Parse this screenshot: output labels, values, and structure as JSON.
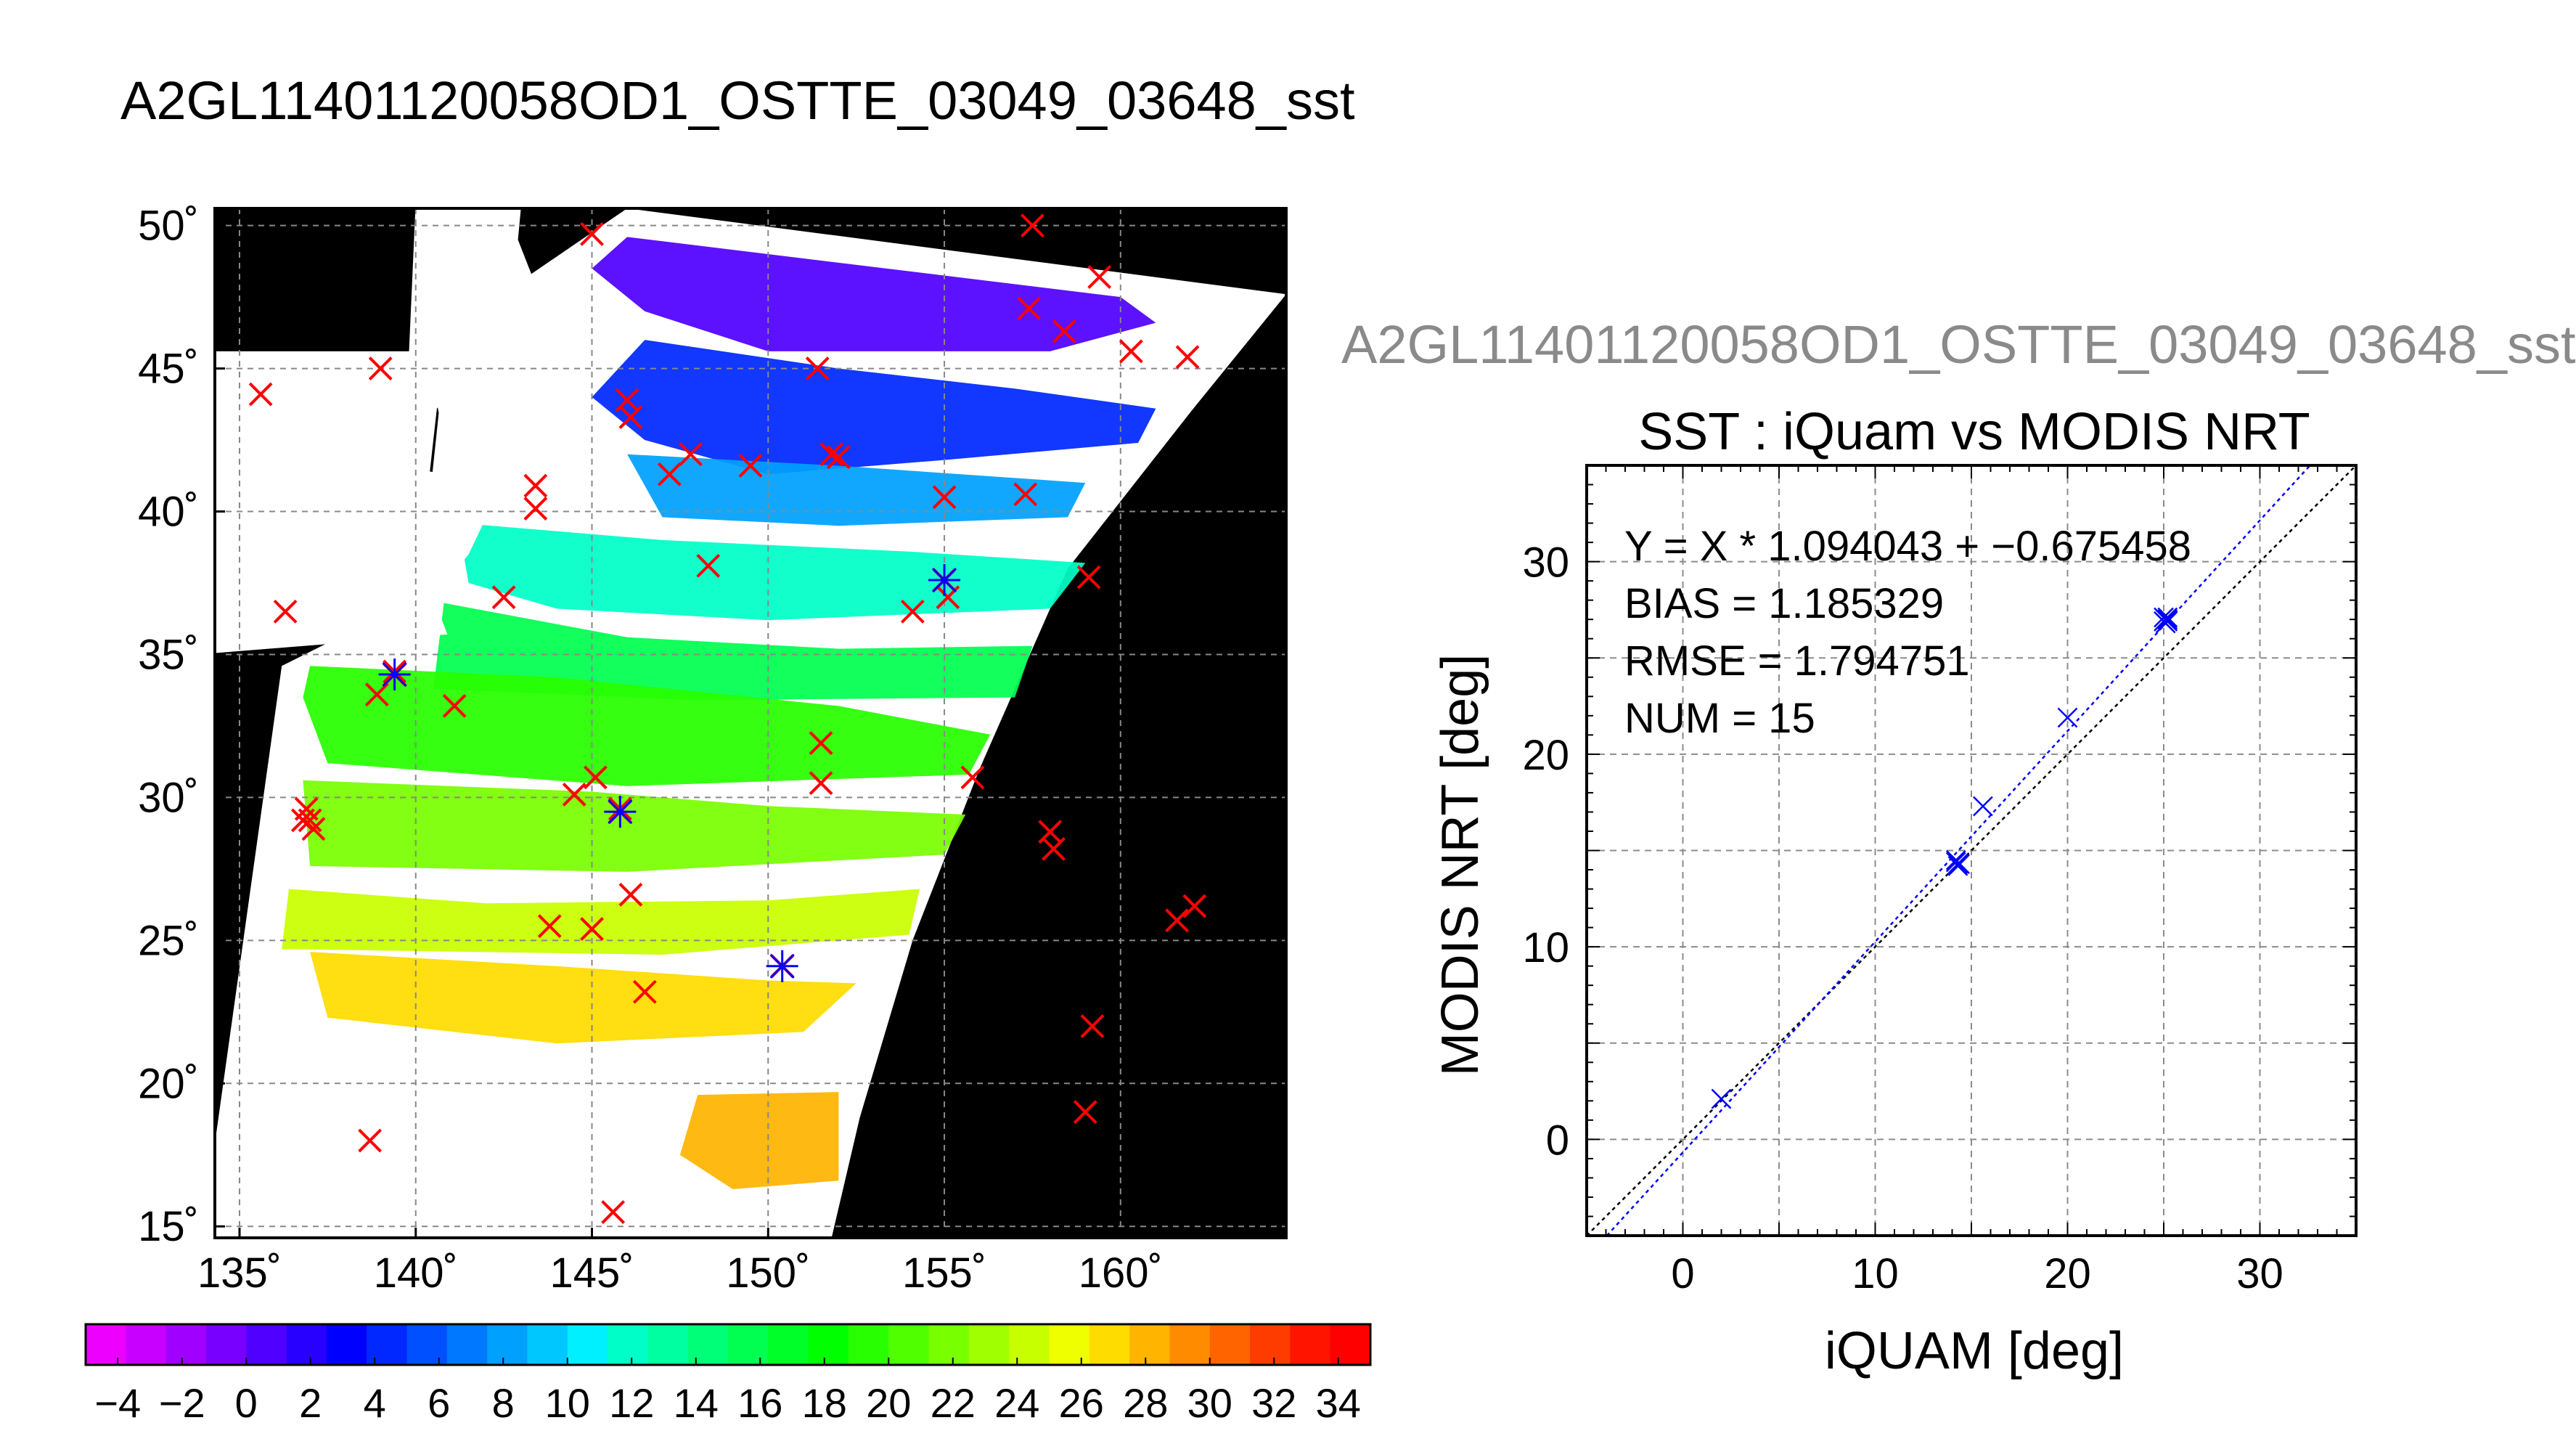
{
  "titles": {
    "main": "A2GL11401120058OD1_OSTTE_03049_03648_sst",
    "scatter_header": "A2GL11401120058OD1_OSTTE_03049_03648_sst"
  },
  "colors": {
    "map_background": "#000000",
    "land": "#ffffff",
    "match_marker": "#ff0000",
    "selected_marker": "#0000ff",
    "fit_line": "#0000ff",
    "one_to_one_line": "#000000"
  },
  "chart_data": [
    {
      "type": "heatmap",
      "title": "A2GL11401120058OD1_OSTTE_03049_03648_sst",
      "x_ticks": [
        "135˚",
        "140˚",
        "145˚",
        "150˚",
        "155˚",
        "160˚"
      ],
      "x_tick_values": [
        135,
        140,
        145,
        150,
        155,
        160
      ],
      "y_ticks": [
        "15˚",
        "20˚",
        "25˚",
        "30˚",
        "35˚",
        "40˚",
        "45˚",
        "50˚"
      ],
      "y_tick_values": [
        15,
        20,
        25,
        30,
        35,
        40,
        45,
        50
      ],
      "xlim": [
        134.3,
        164.7
      ],
      "ylim": [
        14.6,
        50.6
      ],
      "grid": true,
      "colorbar": {
        "min": -5,
        "max": 35,
        "labels": [
          "−4",
          "−2",
          "0",
          "2",
          "4",
          "6",
          "8",
          "10",
          "12",
          "14",
          "16",
          "18",
          "20",
          "22",
          "24",
          "26",
          "28",
          "30",
          "32",
          "34"
        ],
        "label_values": [
          -4,
          -2,
          0,
          2,
          4,
          6,
          8,
          10,
          12,
          14,
          16,
          18,
          20,
          22,
          24,
          26,
          28,
          30,
          32,
          34
        ],
        "colors": [
          "#ee00ff",
          "#c800ff",
          "#a000ff",
          "#7800ff",
          "#5000ff",
          "#2800ff",
          "#0000ff",
          "#0028ff",
          "#0050ff",
          "#0078ff",
          "#00a0ff",
          "#00c8ff",
          "#00f0ff",
          "#00ffc8",
          "#00ffa0",
          "#00ff78",
          "#00ff50",
          "#00ff28",
          "#00ff00",
          "#28ff00",
          "#50ff00",
          "#78ff00",
          "#a0ff00",
          "#c8ff00",
          "#f0ff00",
          "#ffdc00",
          "#ffb400",
          "#ff8c00",
          "#ff6400",
          "#ff3c00",
          "#ff1400",
          "#ff0000"
        ]
      },
      "sst_regions": [
        {
          "temp": 1,
          "points": [
            [
              146,
              49.6
            ],
            [
              160,
              47.5
            ],
            [
              161,
              46.6
            ],
            [
              158,
              45.6
            ],
            [
              150,
              45.6
            ],
            [
              146.5,
              47
            ],
            [
              145,
              48.5
            ]
          ]
        },
        {
          "temp": 4,
          "points": [
            [
              146.5,
              46
            ],
            [
              152,
              45
            ],
            [
              157,
              44.3
            ],
            [
              161,
              43.6
            ],
            [
              160.5,
              42.4
            ],
            [
              155,
              41.8
            ],
            [
              150,
              41.3
            ],
            [
              146.5,
              42.5
            ],
            [
              145,
              44
            ]
          ]
        },
        {
          "temp": 8,
          "points": [
            [
              146,
              42
            ],
            [
              152,
              41.6
            ],
            [
              159,
              41
            ],
            [
              158.5,
              39.8
            ],
            [
              152,
              39.5
            ],
            [
              147,
              39.8
            ]
          ]
        },
        {
          "temp": 12,
          "points": [
            [
              141.2,
              39.6
            ],
            [
              147,
              39
            ],
            [
              154,
              38.6
            ],
            [
              159,
              38.2
            ],
            [
              158,
              36.6
            ],
            [
              150,
              36.2
            ],
            [
              144,
              36.6
            ],
            [
              141.5,
              37.5
            ]
          ]
        },
        {
          "temp": 16,
          "points": [
            [
              140.8,
              36.8
            ],
            [
              146,
              35.6
            ],
            [
              152,
              35.2
            ],
            [
              157.5,
              35.3
            ],
            [
              157,
              33.5
            ],
            [
              148,
              33.4
            ],
            [
              140.5,
              33.8
            ]
          ]
        },
        {
          "temp": 19,
          "points": [
            [
              137,
              34.6
            ],
            [
              144,
              34.2
            ],
            [
              152,
              33.2
            ],
            [
              156.3,
              32.2
            ],
            [
              155.7,
              30.8
            ],
            [
              146,
              30.4
            ],
            [
              137.5,
              31.2
            ],
            [
              136.8,
              33.5
            ]
          ]
        },
        {
          "temp": 22,
          "points": [
            [
              136.8,
              30.6
            ],
            [
              145,
              30.2
            ],
            [
              150,
              29.7
            ],
            [
              155.6,
              29.4
            ],
            [
              155,
              28
            ],
            [
              146,
              27.4
            ],
            [
              137,
              27.6
            ]
          ]
        },
        {
          "temp": 24.5,
          "points": [
            [
              136.4,
              26.8
            ],
            [
              142,
              26.3
            ],
            [
              150,
              26.4
            ],
            [
              154.3,
              26.8
            ],
            [
              154,
              25.2
            ],
            [
              147,
              24.5
            ],
            [
              136.2,
              24.7
            ]
          ]
        },
        {
          "temp": 27,
          "points": [
            [
              137,
              24.6
            ],
            [
              144,
              24.1
            ],
            [
              150,
              23.6
            ],
            [
              152.5,
              23.5
            ],
            [
              151,
              21.8
            ],
            [
              144,
              21.4
            ],
            [
              137.5,
              22.3
            ]
          ]
        },
        {
          "temp": 28.5,
          "points": [
            [
              148,
              19.6
            ],
            [
              152,
              19.7
            ],
            [
              152,
              16.6
            ],
            [
              149,
              16.3
            ],
            [
              147.5,
              17.5
            ]
          ]
        }
      ],
      "land_regions": [
        {
          "points": [
            [
              133.8,
              35
            ],
            [
              140.9,
              35.7
            ],
            [
              140.5,
              37
            ],
            [
              141.5,
              38.5
            ],
            [
              142,
              39.8
            ],
            [
              141.2,
              41.2
            ],
            [
              140.4,
              41.4
            ],
            [
              140.6,
              43.6
            ],
            [
              141.8,
              45.4
            ],
            [
              141.8,
              45.6
            ],
            [
              134,
              45.6
            ]
          ]
        },
        {
          "points": [
            [
              140.9,
              41.8
            ],
            [
              141.8,
              42.3
            ],
            [
              143.3,
              42
            ],
            [
              145.6,
              43.3
            ],
            [
              144.5,
              44
            ],
            [
              141.8,
              45.5
            ],
            [
              140.6,
              43.8
            ]
          ]
        },
        {
          "points": [
            [
              139.8,
              45.3
            ],
            [
              142.3,
              45.9
            ],
            [
              143.6,
              47.3
            ],
            [
              142.9,
              49.5
            ],
            [
              143,
              50.8
            ],
            [
              140,
              50.8
            ]
          ]
        }
      ],
      "matchups": [
        [
          135.6,
          44.1
        ],
        [
          139,
          45
        ],
        [
          136.3,
          36.5
        ],
        [
          138.9,
          33.6
        ],
        [
          141.1,
          33.2
        ],
        [
          142.5,
          37
        ],
        [
          139.4,
          34.4
        ],
        [
          143.4,
          40.1
        ],
        [
          143.4,
          40.9
        ],
        [
          145,
          49.7
        ],
        [
          146,
          43.9
        ],
        [
          146.1,
          43.3
        ],
        [
          147.2,
          41.3
        ],
        [
          147.8,
          42
        ],
        [
          149.5,
          41.6
        ],
        [
          148.3,
          38.1
        ],
        [
          151.4,
          45
        ],
        [
          152,
          41.9
        ],
        [
          151.8,
          42
        ],
        [
          155,
          40.5
        ],
        [
          157.3,
          40.6
        ],
        [
          159.1,
          37.7
        ],
        [
          155.1,
          37
        ],
        [
          154.1,
          36.5
        ],
        [
          157.5,
          50
        ],
        [
          157.4,
          47.1
        ],
        [
          158.4,
          46.3
        ],
        [
          159.4,
          48.2
        ],
        [
          160.3,
          45.6
        ],
        [
          161.9,
          45.4
        ],
        [
          144.5,
          30.1
        ],
        [
          145.1,
          30.7
        ],
        [
          145.8,
          29.6
        ],
        [
          146.1,
          26.6
        ],
        [
          145,
          25.4
        ],
        [
          143.8,
          25.5
        ],
        [
          146.5,
          23.2
        ],
        [
          151.5,
          31.9
        ],
        [
          151.5,
          30.5
        ],
        [
          155.8,
          30.7
        ],
        [
          158,
          28.8
        ],
        [
          158.1,
          28.2
        ],
        [
          161.6,
          25.7
        ],
        [
          162.1,
          26.2
        ],
        [
          159.2,
          22
        ],
        [
          159,
          19
        ],
        [
          138.7,
          18
        ],
        [
          145.6,
          15.5
        ],
        [
          136.9,
          29.6
        ],
        [
          137,
          29.2
        ],
        [
          137.1,
          28.9
        ],
        [
          136.8,
          29.2
        ]
      ],
      "highlighted_matchups": [
        [
          139.4,
          34.3
        ],
        [
          145.8,
          29.5
        ],
        [
          150.4,
          24.1
        ],
        [
          155,
          37.6
        ]
      ]
    },
    {
      "type": "scatter",
      "title": "SST : iQuam vs MODIS NRT",
      "xlabel": "iQUAM [deg]",
      "ylabel": "MODIS NRT [deg]",
      "xlim": [
        -5,
        35
      ],
      "ylim": [
        -5,
        35
      ],
      "x_ticks": [
        0,
        10,
        20,
        30
      ],
      "y_ticks": [
        0,
        10,
        20,
        30
      ],
      "grid": true,
      "annotations": [
        "Y = X * 1.094043 + −0.675458",
        "BIAS = 1.185329",
        "RMSE = 1.794751",
        "NUM = 15"
      ],
      "fit": {
        "slope": 1.094043,
        "intercept": -0.675458
      },
      "points": [
        {
          "x": 2.0,
          "y": 2.1
        },
        {
          "x": 14.2,
          "y": 14.5
        },
        {
          "x": 14.3,
          "y": 14.3
        },
        {
          "x": 14.2,
          "y": 14.4
        },
        {
          "x": 14.4,
          "y": 14.3
        },
        {
          "x": 14.3,
          "y": 14.2
        },
        {
          "x": 15.6,
          "y": 17.3
        },
        {
          "x": 20.0,
          "y": 21.9
        },
        {
          "x": 25.1,
          "y": 27.0
        },
        {
          "x": 25.2,
          "y": 26.9
        },
        {
          "x": 25.0,
          "y": 27.1
        },
        {
          "x": 25.2,
          "y": 27.0
        },
        {
          "x": 25.1,
          "y": 26.8
        },
        {
          "x": 25.0,
          "y": 26.9
        },
        {
          "x": 25.2,
          "y": 27.1
        }
      ]
    }
  ]
}
